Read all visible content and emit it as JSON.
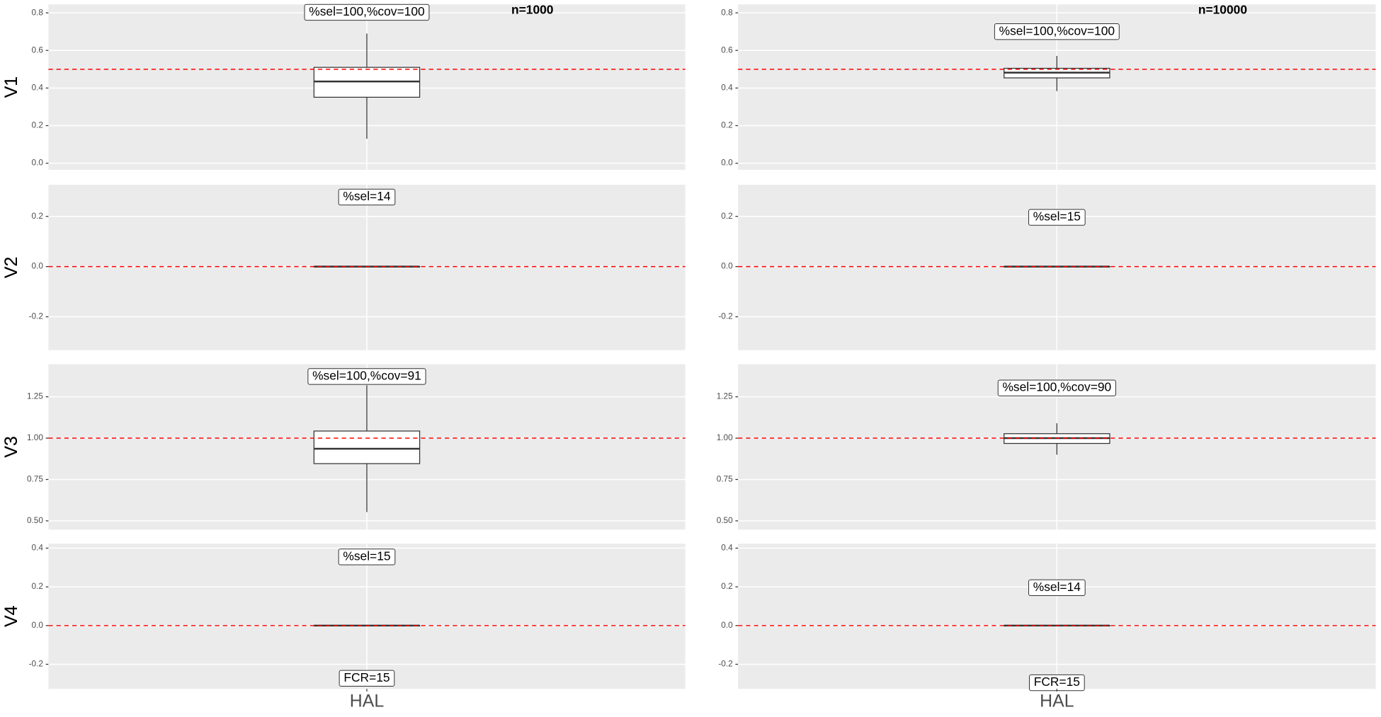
{
  "chart_data": [
    {
      "type": "box",
      "title": "n=1000",
      "y_label": "V1",
      "ylim": [
        -0.035,
        0.845
      ],
      "yticks": [
        {
          "value": 0,
          "label": "0.0"
        },
        0.2,
        0.4,
        0.6,
        0.8
      ],
      "box": {
        "min": 0.13,
        "q1": 0.351,
        "median": 0.435,
        "q3": 0.51,
        "max": 0.69
      },
      "ref_line": 0.5,
      "ref_color": "#ff0000",
      "annotation": "%sel=100,%cov=100"
    },
    {
      "type": "box",
      "title": "n=10000",
      "y_label": "V1",
      "ylim": [
        -0.035,
        0.845
      ],
      "yticks": [
        {
          "value": 0,
          "label": "0.0"
        },
        0.2,
        0.4,
        0.6,
        0.8
      ],
      "box": {
        "min": 0.384,
        "q1": 0.454,
        "median": 0.482,
        "q3": 0.505,
        "max": 0.571
      },
      "ref_line": 0.5,
      "ref_color": "#ff0000",
      "annotation": "%sel=100,%cov=100"
    },
    {
      "type": "box",
      "y_label": "V2",
      "ylim": [
        -0.333,
        0.326
      ],
      "yticks": [
        -0.2,
        {
          "value": 0,
          "label": "0.0"
        },
        0.2
      ],
      "box": {
        "min": 0,
        "q1": 0,
        "median": 0,
        "q3": 0,
        "max": 0
      },
      "ref_line": 0,
      "ref_color": "#ff0000",
      "annotation": "%sel=14"
    },
    {
      "type": "box",
      "y_label": "V2",
      "ylim": [
        -0.333,
        0.326
      ],
      "yticks": [
        -0.2,
        {
          "value": 0,
          "label": "0.0"
        },
        0.2
      ],
      "box": {
        "min": 0,
        "q1": 0,
        "median": 0,
        "q3": 0,
        "max": 0
      },
      "ref_line": 0,
      "ref_color": "#ff0000",
      "annotation": "%sel=15"
    },
    {
      "type": "box",
      "y_label": "V3",
      "ylim": [
        0.447,
        1.447
      ],
      "yticks": [
        {
          "value": 0.5,
          "label": "0.50"
        },
        0.75,
        {
          "value": 1,
          "label": "1.00"
        },
        1.25
      ],
      "box": {
        "min": 0.553,
        "q1": 0.846,
        "median": 0.936,
        "q3": 1.043,
        "max": 1.32
      },
      "ref_line": 1,
      "ref_color": "#ff0000",
      "annotation": "%sel=100,%cov=91"
    },
    {
      "type": "box",
      "y_label": "V3",
      "ylim": [
        0.447,
        1.447
      ],
      "yticks": [
        {
          "value": 0.5,
          "label": "0.50"
        },
        0.75,
        {
          "value": 1,
          "label": "1.00"
        },
        1.25
      ],
      "box": {
        "min": 0.9,
        "q1": 0.968,
        "median": 1,
        "q3": 1.027,
        "max": 1.09
      },
      "ref_line": 1,
      "ref_color": "#ff0000",
      "annotation": "%sel=100,%cov=90"
    },
    {
      "type": "box",
      "y_label": "V4",
      "x_label": "HAL",
      "ylim": [
        -0.327,
        0.423
      ],
      "yticks": [
        -0.2,
        {
          "value": 0,
          "label": "0.0"
        },
        0.2,
        0.4
      ],
      "box": {
        "min": 0,
        "q1": 0,
        "median": 0,
        "q3": 0,
        "max": 0
      },
      "ref_line": 0,
      "ref_color": "#ff0000",
      "annotation": "%sel=15",
      "footnote": "FCR=15"
    },
    {
      "type": "box",
      "y_label": "V4",
      "x_label": "HAL",
      "ylim": [
        -0.327,
        0.423
      ],
      "yticks": [
        -0.2,
        {
          "value": 0,
          "label": "0.0"
        },
        0.2,
        0.4
      ],
      "box": {
        "min": 0,
        "q1": 0,
        "median": 0,
        "q3": 0,
        "max": 0
      },
      "ref_line": 0,
      "ref_color": "#ff0000",
      "annotation": "%sel=14",
      "footnote": "FCR=15"
    }
  ]
}
